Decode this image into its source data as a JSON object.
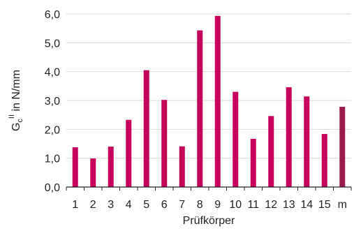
{
  "chart_data": {
    "type": "bar",
    "categories": [
      "1",
      "2",
      "3",
      "4",
      "5",
      "6",
      "7",
      "8",
      "9",
      "10",
      "11",
      "12",
      "13",
      "14",
      "15",
      "m"
    ],
    "values": [
      1.38,
      0.99,
      1.4,
      2.33,
      4.05,
      3.02,
      1.41,
      5.43,
      5.93,
      3.3,
      1.67,
      2.46,
      3.46,
      3.14,
      1.84,
      2.78
    ],
    "title": "",
    "xlabel": "Prüfkörper",
    "ylabel": {
      "base": "G",
      "sub": "c",
      "sup": "II",
      "rest": " in N/mm"
    },
    "ylim": [
      0,
      6
    ],
    "yticks": [
      0,
      1,
      2,
      3,
      4,
      5,
      6
    ],
    "ytick_labels": [
      "0,0",
      "1,0",
      "2,0",
      "3,0",
      "4,0",
      "5,0",
      "6,0"
    ],
    "grid": "horizontal",
    "legend": "none",
    "colors": {
      "bar": "#C6005A",
      "highlight_bar": "#9B1B4F",
      "grid": "#D9D9D9",
      "axis": "#222222"
    },
    "highlight_category": "m"
  }
}
